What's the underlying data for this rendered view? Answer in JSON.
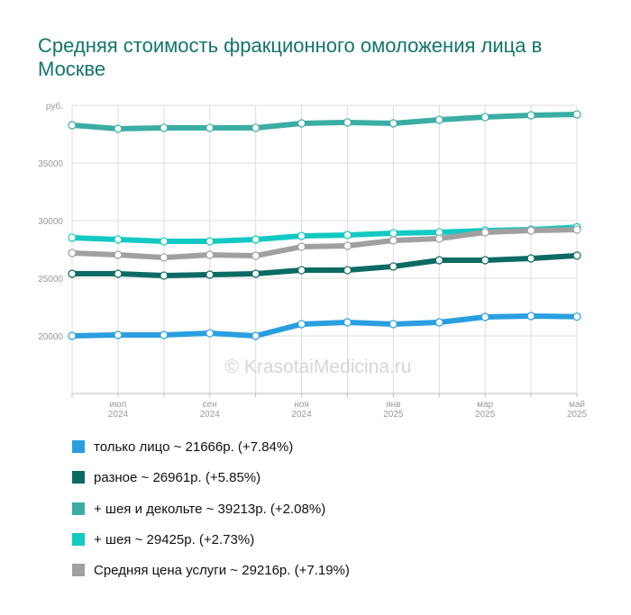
{
  "chart_data": {
    "type": "line",
    "title": "Средняя стоимость фракционного омоложения лица в Москве",
    "watermark": "© KrasotaiMedicina.ru",
    "categories": [
      null,
      "июл 2024",
      null,
      "сен 2024",
      null,
      "ноя 2024",
      null,
      "янв 2025",
      null,
      "мар 2025",
      null,
      "май 2025"
    ],
    "ylim": [
      15000,
      40000
    ],
    "yticks": [
      20000,
      25000,
      30000,
      35000,
      {
        "value": 40000,
        "label": "руб."
      }
    ],
    "grid": true,
    "series": [
      {
        "name": "только лицо ~ 21666р. (+7.84%)",
        "color": "#2a9fe0",
        "values": [
          20000,
          20080,
          20080,
          20230,
          20000,
          21020,
          21170,
          21020,
          21170,
          21640,
          21720,
          21666
        ]
      },
      {
        "name": "разное ~ 26961р. (+5.85%)",
        "color": "#0b6b63",
        "values": [
          25390,
          25390,
          25230,
          25310,
          25390,
          25700,
          25700,
          26020,
          26560,
          26560,
          26720,
          26961
        ]
      },
      {
        "name": "+ шея и декольте ~ 39213р. (+2.08%)",
        "color": "#3aada4",
        "values": [
          38280,
          37970,
          38050,
          38050,
          38050,
          38440,
          38520,
          38440,
          38750,
          38980,
          39140,
          39213
        ]
      },
      {
        "name": "+ шея ~ 29425р. (+2.73%)",
        "color": "#13c9c3",
        "values": [
          28520,
          28360,
          28200,
          28200,
          28360,
          28670,
          28750,
          28910,
          28980,
          29140,
          29220,
          29425
        ]
      },
      {
        "name": "Средняя цена услуги ~ 29216р. (+7.19%)",
        "color": "#a0a0a0",
        "values": [
          27190,
          27030,
          26800,
          27030,
          26950,
          27730,
          27810,
          28280,
          28440,
          28980,
          29140,
          29216
        ]
      }
    ]
  }
}
